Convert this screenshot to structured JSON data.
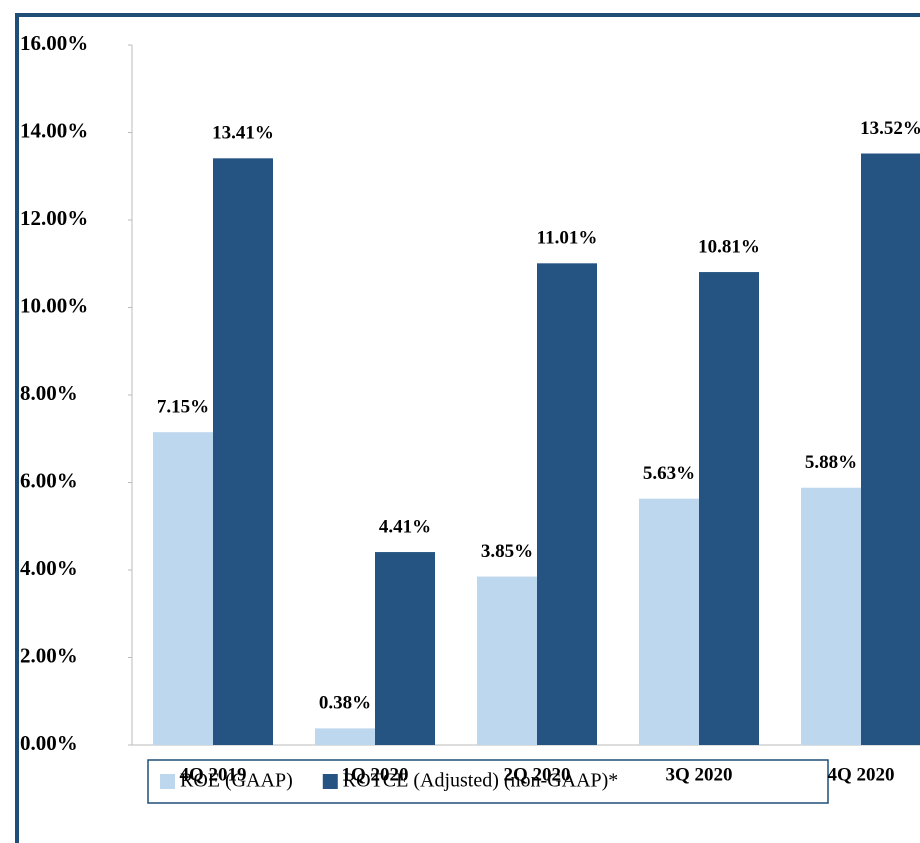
{
  "chart_data": {
    "type": "bar",
    "categories": [
      "4Q 2019",
      "1Q 2020",
      "2Q 2020",
      "3Q 2020",
      "4Q 2020"
    ],
    "series": [
      {
        "name": "ROE (GAAP)",
        "color": "#bdd7ee",
        "values": [
          7.15,
          0.38,
          3.85,
          5.63,
          5.88
        ],
        "value_labels": [
          "7.15%",
          "0.38%",
          "3.85%",
          "5.63%",
          "5.88%"
        ]
      },
      {
        "name": "ROTCE (Adjusted) (non-GAAP)*",
        "color": "#255483",
        "values": [
          13.41,
          4.41,
          11.01,
          10.81,
          13.52
        ],
        "value_labels": [
          "13.41%",
          "4.41%",
          "11.01%",
          "10.81%",
          "13.52%"
        ]
      }
    ],
    "ylim": [
      0,
      16
    ],
    "yticks": [
      {
        "value": 0,
        "label": "0.00%"
      },
      {
        "value": 2,
        "label": "2.00%"
      },
      {
        "value": 4,
        "label": "4.00%"
      },
      {
        "value": 6,
        "label": "6.00%"
      },
      {
        "value": 8,
        "label": "8.00%"
      },
      {
        "value": 10,
        "label": "10.00%"
      },
      {
        "value": 12,
        "label": "12.00%"
      },
      {
        "value": 14,
        "label": "14.00%"
      },
      {
        "value": 16,
        "label": "16.00%"
      }
    ],
    "legend": "bottom"
  }
}
